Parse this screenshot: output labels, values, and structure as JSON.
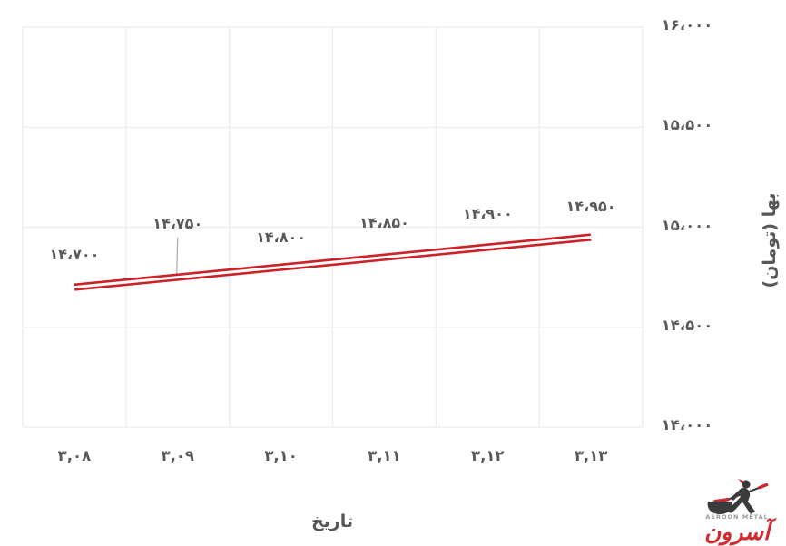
{
  "page": {
    "background": "#ffffff"
  },
  "chart_data": {
    "type": "line",
    "title": "",
    "xlabel": "تاریخ",
    "ylabel": "بها (تومان)",
    "categories": [
      "۳,۰۸",
      "۳,۰۹",
      "۳,۱۰",
      "۳,۱۱",
      "۳,۱۲",
      "۳,۱۳"
    ],
    "categories_value": [
      3.08,
      3.09,
      3.1,
      3.11,
      3.12,
      3.13
    ],
    "ylim": [
      14000,
      16000
    ],
    "yticks": [
      14000,
      14500,
      15000,
      15500,
      16000
    ],
    "ytick_labels": [
      "۱۴،۰۰۰",
      "۱۴،۵۰۰",
      "۱۵،۰۰۰",
      "۱۵،۵۰۰",
      "۱۶،۰۰۰"
    ],
    "grid": true,
    "legend": "none",
    "y_axis_side": "right",
    "series": [
      {
        "name": "بها (تومان)",
        "values": [
          14700,
          14750,
          14800,
          14850,
          14900,
          14950
        ],
        "point_labels": [
          "۱۴،۷۰۰",
          "۱۴،۷۵۰",
          "۱۴،۸۰۰",
          "۱۴،۸۵۰",
          "۱۴،۹۰۰",
          "۱۴،۹۵۰"
        ],
        "color": "#cd2127",
        "line_style": "double",
        "label_dy": [
          -35,
          -58,
          -32,
          -37,
          -36,
          -33
        ],
        "label_leader_index": 1
      }
    ],
    "colors": {
      "grid": "#ececef",
      "text": "#58595b",
      "line": "#cd2127",
      "line_core": "#ffffff",
      "leader": "#aaaaad"
    }
  },
  "watermark": {
    "brand_fa": "آسرون",
    "brand_en": "ASROON METAL",
    "color": "#d02b2e",
    "figure": "blacksmith-with-anvil"
  }
}
